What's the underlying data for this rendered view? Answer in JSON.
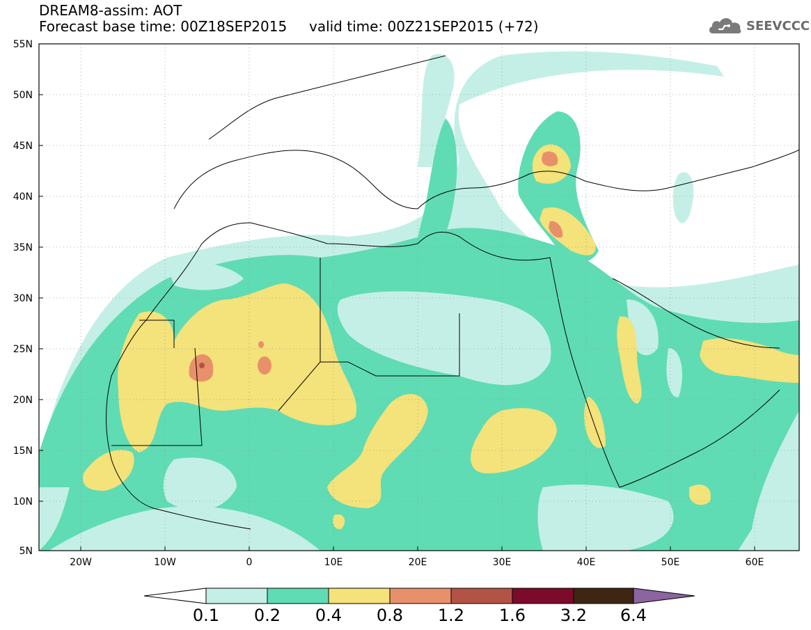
{
  "header": {
    "line1": "DREAM8-assim: AOT",
    "line2": "Forecast base time: 00Z18SEP2015     valid time: 00Z21SEP2015 (+72)"
  },
  "logo": {
    "text": "SEEVCCC",
    "icon": "cloud-icon"
  },
  "map": {
    "projection": "lat-lon",
    "lon_range": [
      -25,
      65
    ],
    "lat_range": [
      5,
      55
    ],
    "gridlines": "dotted",
    "lat_ticks": [
      "55N",
      "50N",
      "45N",
      "40N",
      "35N",
      "30N",
      "25N",
      "20N",
      "15N",
      "10N",
      "5N"
    ],
    "lon_ticks": [
      "20W",
      "10W",
      "0",
      "10E",
      "20E",
      "30E",
      "40E",
      "50E",
      "60E"
    ]
  },
  "colorbar": {
    "levels": [
      "0.1",
      "0.2",
      "0.4",
      "0.8",
      "1.2",
      "1.6",
      "3.2",
      "6.4"
    ],
    "colors": [
      "#ffffff",
      "#c4efe6",
      "#5fdcb3",
      "#f4e27a",
      "#e8906a",
      "#b35345",
      "#7c0a2b",
      "#3e2614",
      "#8c64a0"
    ]
  }
}
